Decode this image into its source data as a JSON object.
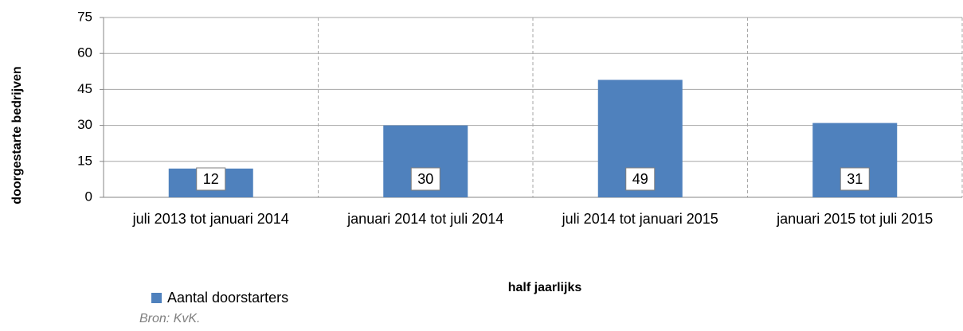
{
  "chart_data": {
    "type": "bar",
    "categories": [
      "juli 2013 tot januari 2014",
      "januari 2014 tot juli 2014",
      "juli 2014 tot januari 2015",
      "januari 2015 tot juli 2015"
    ],
    "series": [
      {
        "name": "Aantal doorstarters",
        "color": "#4f81bd",
        "values": [
          12,
          30,
          49,
          31
        ]
      }
    ],
    "ylim": [
      0,
      75
    ],
    "yticks": [
      0,
      15,
      30,
      45,
      60,
      75
    ],
    "grid": true,
    "y_label": "doorgestarte bedrijven",
    "x_label": "half jaarlijks",
    "legend": "bottom-left",
    "source": "Bron: KvK."
  }
}
